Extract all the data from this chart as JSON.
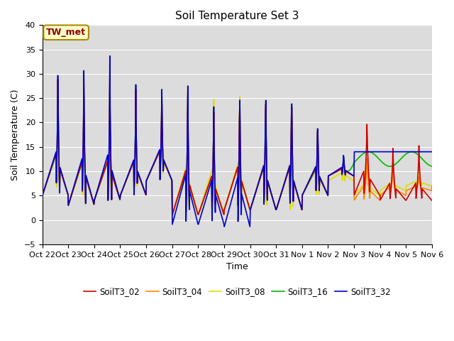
{
  "title": "Soil Temperature Set 3",
  "xlabel": "Time",
  "ylabel": "Soil Temperature (C)",
  "ylim": [
    -5,
    40
  ],
  "annotation_text": "TW_met",
  "annotation_color": "#8B0000",
  "annotation_bg": "#FFFFCC",
  "annotation_border": "#AA8800",
  "series_colors": {
    "SoilT3_02": "#CC0000",
    "SoilT3_04": "#FF8800",
    "SoilT3_08": "#DDDD00",
    "SoilT3_16": "#00BB00",
    "SoilT3_32": "#0000CC"
  },
  "tick_labels": [
    "Oct 22",
    "Oct 23",
    "Oct 24",
    "Oct 25",
    "Oct 26",
    "Oct 27",
    "Oct 28",
    "Oct 29",
    "Oct 30",
    "Oct 31",
    "Nov 1",
    "Nov 2",
    "Nov 3",
    "Nov 4",
    "Nov 5",
    "Nov 6"
  ],
  "bg_color": "#DCDCDC",
  "grid_color": "#FFFFFF",
  "linewidth": 1.2,
  "figsize": [
    6.4,
    4.8
  ],
  "dpi": 100
}
